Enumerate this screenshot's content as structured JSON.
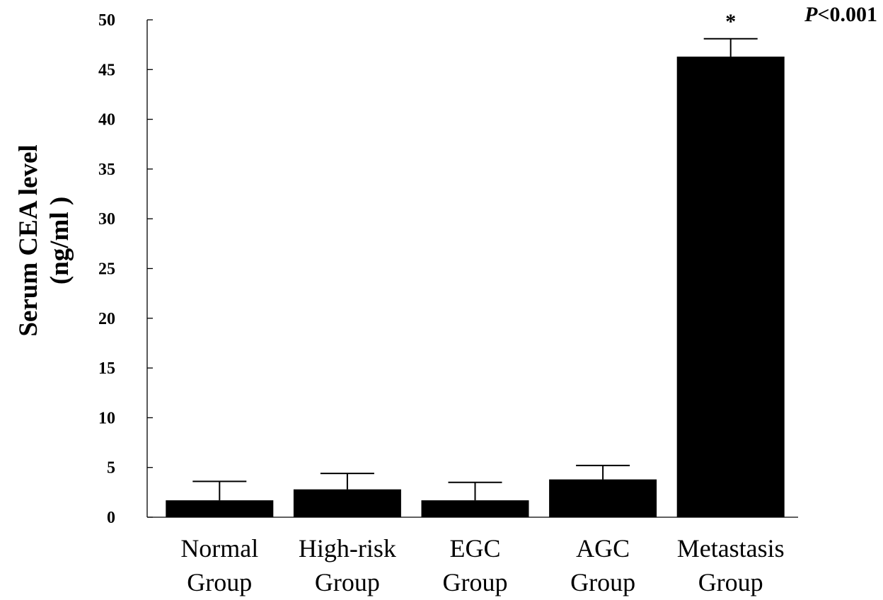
{
  "chart_data": {
    "type": "bar",
    "categories": [
      [
        "Normal",
        "Group"
      ],
      [
        "High-risk",
        "Group"
      ],
      [
        "EGC",
        "Group"
      ],
      [
        "AGC",
        "Group"
      ],
      [
        "Metastasis",
        "Group"
      ]
    ],
    "values": [
      1.7,
      2.8,
      1.7,
      3.8,
      46.3
    ],
    "error_upper": [
      3.6,
      4.4,
      3.5,
      5.2,
      48.1
    ],
    "ylabel_lines": [
      "Serum CEA level",
      "(ng/ml )"
    ],
    "ylim": [
      0,
      50
    ],
    "yticks": [
      0,
      5,
      10,
      15,
      20,
      25,
      30,
      35,
      40,
      45,
      50
    ],
    "annotations": {
      "significance_mark": "*",
      "p_value": {
        "prefix": "P",
        "text": "<0.001"
      }
    },
    "grid": false,
    "bar_color": "#000000"
  }
}
